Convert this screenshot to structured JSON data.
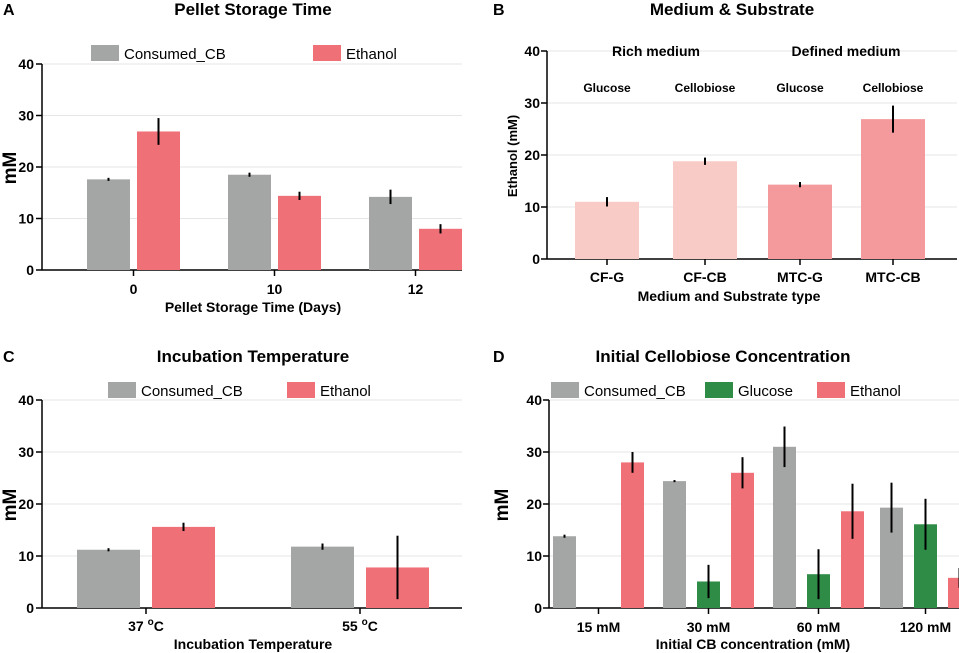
{
  "colors": {
    "consumed": "#a3a6a4",
    "ethanol": "#f07078",
    "glucose": "#2e8c47",
    "rich": "#f8cbc7",
    "defined": "#f49a9c",
    "axis": "#000000",
    "grid": "#e6e6e6",
    "error": "#000000"
  },
  "chart_data": [
    {
      "panel": "A",
      "type": "bar",
      "title": "Pellet Storage Time",
      "xlabel": "Pellet Storage Time (Days)",
      "ylabel": "mM",
      "ylim": [
        0,
        40
      ],
      "yticks": [
        "0",
        "10",
        "20",
        "30",
        "40"
      ],
      "categories": [
        "0",
        "10",
        "12"
      ],
      "legend": "top",
      "series": [
        {
          "name": "Consumed_CB",
          "color_key": "consumed",
          "values": [
            17.6,
            18.5,
            14.2
          ],
          "errors": [
            0.3,
            0.4,
            1.4
          ]
        },
        {
          "name": "Ethanol",
          "color_key": "ethanol",
          "values": [
            26.9,
            14.4,
            8.0
          ],
          "errors": [
            2.6,
            0.8,
            0.9
          ]
        }
      ]
    },
    {
      "panel": "B",
      "type": "bar",
      "title": "Medium & Substrate",
      "xlabel": "Medium and Substrate type",
      "ylabel": "Ethanol (mM)",
      "ylim": [
        0,
        40
      ],
      "yticks": [
        "0",
        "10",
        "20",
        "30",
        "40"
      ],
      "categories": [
        "CF-G",
        "CF-CB",
        "MTC-G",
        "MTC-CB"
      ],
      "group_labels": [
        "Rich medium",
        "Defined medium"
      ],
      "substrate_labels": [
        "Glucose",
        "Cellobiose",
        "Glucose",
        "Cellobiose"
      ],
      "series": [
        {
          "name": "Ethanol",
          "color_keys": [
            "rich",
            "rich",
            "defined",
            "defined"
          ],
          "values": [
            11.0,
            18.8,
            14.3,
            26.9
          ],
          "errors": [
            0.9,
            0.7,
            0.5,
            2.6
          ]
        }
      ]
    },
    {
      "panel": "C",
      "type": "bar",
      "title": "Incubation Temperature",
      "xlabel": "Incubation Temperature",
      "ylabel": "mM",
      "ylim": [
        0,
        40
      ],
      "yticks": [
        "0",
        "10",
        "20",
        "30",
        "40"
      ],
      "categories": [
        {
          "main": "37 ",
          "sup": "o",
          "unit": "C"
        },
        {
          "main": "55 ",
          "sup": "o",
          "unit": "C"
        }
      ],
      "legend": "top",
      "series": [
        {
          "name": "Consumed_CB",
          "color_key": "consumed",
          "values": [
            11.2,
            11.8
          ],
          "errors": [
            0.3,
            0.6
          ]
        },
        {
          "name": "Ethanol",
          "color_key": "ethanol",
          "values": [
            15.6,
            7.8
          ],
          "errors": [
            0.8,
            6.1
          ]
        }
      ]
    },
    {
      "panel": "D",
      "type": "bar",
      "title": "Initial Cellobiose Concentration",
      "xlabel": "Initial CB concentration (mM)",
      "ylabel": "mM",
      "ylim": [
        0,
        40
      ],
      "yticks": [
        "0",
        "10",
        "20",
        "30",
        "40"
      ],
      "categories": [
        "15 mM",
        "30 mM",
        "60 mM",
        "120 mM"
      ],
      "legend": "top",
      "series": [
        {
          "name": "Consumed_CB",
          "color_key": "consumed",
          "values": [
            13.8,
            24.4,
            31.0,
            19.3
          ],
          "errors": [
            0.3,
            0.2,
            3.9,
            4.8
          ]
        },
        {
          "name": "Glucose",
          "color_key": "glucose",
          "values": [
            0,
            5.1,
            6.5,
            16.1
          ],
          "errors": [
            0,
            3.2,
            4.8,
            4.9
          ]
        },
        {
          "name": "Ethanol",
          "color_key": "ethanol",
          "values": [
            28.0,
            26.0,
            18.6,
            5.8
          ],
          "errors": [
            2.0,
            3.0,
            5.3,
            1.9
          ]
        }
      ]
    }
  ]
}
